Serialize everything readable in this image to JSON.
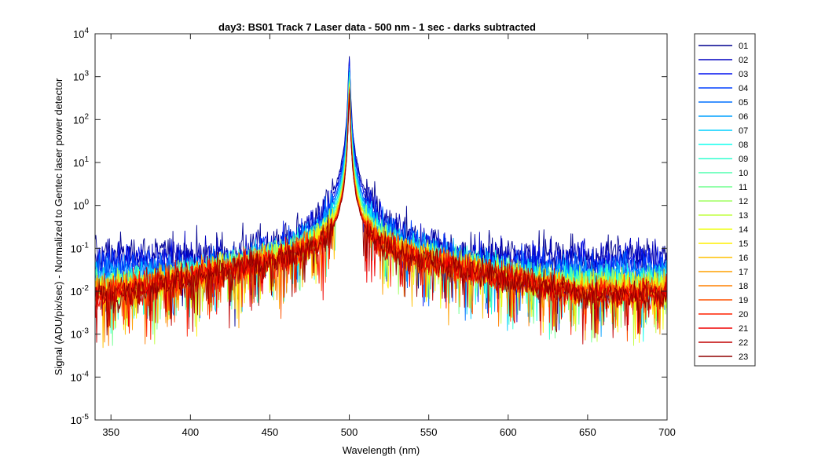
{
  "chart_data": {
    "type": "line",
    "title": "day3: BS01  Track 7 Laser data - 500 nm - 1 sec - darks subtracted",
    "xlabel": "Wavelength (nm)",
    "ylabel": "Signal (ADU/pix/sec) - Normalized to Gentec laser power detector",
    "xlim": [
      340,
      700
    ],
    "ylim": [
      1e-05,
      10000.0
    ],
    "yscale": "log",
    "x_ticks": [
      "350",
      "400",
      "450",
      "500",
      "550",
      "600",
      "650",
      "700"
    ],
    "y_ticks": [
      {
        "base": "10",
        "exp": "-5"
      },
      {
        "base": "10",
        "exp": "-4"
      },
      {
        "base": "10",
        "exp": "-3"
      },
      {
        "base": "10",
        "exp": "-2"
      },
      {
        "base": "10",
        "exp": "-1"
      },
      {
        "base": "10",
        "exp": "0"
      },
      {
        "base": "10",
        "exp": "1"
      },
      {
        "base": "10",
        "exp": "2"
      },
      {
        "base": "10",
        "exp": "3"
      },
      {
        "base": "10",
        "exp": "4"
      }
    ],
    "grid": false,
    "legend_position": "outside-right",
    "peak_wavelength": 500,
    "series": [
      {
        "name": "01",
        "color": "#00008f",
        "peak": 3300,
        "floor": 0.12,
        "noise": 1.4
      },
      {
        "name": "02",
        "color": "#0000c0",
        "peak": 2800,
        "floor": 0.1,
        "noise": 1.3
      },
      {
        "name": "03",
        "color": "#0010ef",
        "peak": 2400,
        "floor": 0.08,
        "noise": 1.2
      },
      {
        "name": "04",
        "color": "#0040ff",
        "peak": 2000,
        "floor": 0.06,
        "noise": 1.15
      },
      {
        "name": "05",
        "color": "#0070ff",
        "peak": 1700,
        "floor": 0.05,
        "noise": 1.1
      },
      {
        "name": "06",
        "color": "#00a0ff",
        "peak": 1500,
        "floor": 0.04,
        "noise": 1.05
      },
      {
        "name": "07",
        "color": "#00cfff",
        "peak": 1300,
        "floor": 0.035,
        "noise": 1.0
      },
      {
        "name": "08",
        "color": "#10ffef",
        "peak": 1150,
        "floor": 0.03,
        "noise": 1.0
      },
      {
        "name": "09",
        "color": "#30ffcf",
        "peak": 1000,
        "floor": 0.028,
        "noise": 1.0
      },
      {
        "name": "10",
        "color": "#50ffaf",
        "peak": 900,
        "floor": 0.026,
        "noise": 1.0
      },
      {
        "name": "11",
        "color": "#70ff8f",
        "peak": 820,
        "floor": 0.024,
        "noise": 1.0
      },
      {
        "name": "12",
        "color": "#a0ff60",
        "peak": 760,
        "floor": 0.022,
        "noise": 1.0
      },
      {
        "name": "13",
        "color": "#c0ff40",
        "peak": 700,
        "floor": 0.02,
        "noise": 1.0
      },
      {
        "name": "14",
        "color": "#efff10",
        "peak": 650,
        "floor": 0.02,
        "noise": 1.0
      },
      {
        "name": "15",
        "color": "#ffef00",
        "peak": 610,
        "floor": 0.019,
        "noise": 1.0
      },
      {
        "name": "16",
        "color": "#ffc000",
        "peak": 580,
        "floor": 0.018,
        "noise": 1.0
      },
      {
        "name": "17",
        "color": "#ffa000",
        "peak": 550,
        "floor": 0.017,
        "noise": 1.0
      },
      {
        "name": "18",
        "color": "#ff8000",
        "peak": 520,
        "floor": 0.016,
        "noise": 1.0
      },
      {
        "name": "19",
        "color": "#ff5000",
        "peak": 490,
        "floor": 0.016,
        "noise": 1.0
      },
      {
        "name": "20",
        "color": "#ff2000",
        "peak": 460,
        "floor": 0.015,
        "noise": 1.0
      },
      {
        "name": "21",
        "color": "#ef0000",
        "peak": 440,
        "floor": 0.015,
        "noise": 1.0
      },
      {
        "name": "22",
        "color": "#c00000",
        "peak": 420,
        "floor": 0.015,
        "noise": 1.0
      },
      {
        "name": "23",
        "color": "#900000",
        "peak": 400,
        "floor": 0.014,
        "noise": 1.0
      }
    ]
  }
}
